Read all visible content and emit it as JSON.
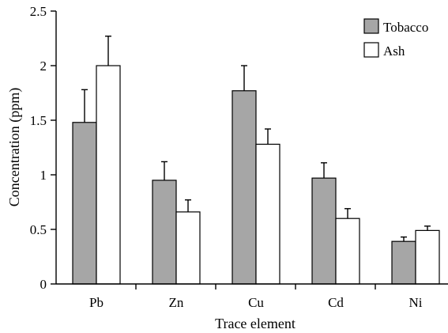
{
  "chart_data": {
    "type": "bar",
    "title": "",
    "xlabel": "Trace element",
    "ylabel": "Concentration (ppm)",
    "ylim": [
      0,
      2.5
    ],
    "yticks": [
      "0",
      "0.5",
      "1",
      "1.5",
      "2",
      "2.5"
    ],
    "categories": [
      "Pb",
      "Zn",
      "Cu",
      "Cd",
      "Ni"
    ],
    "grid": false,
    "legend_position": "top-right",
    "series": [
      {
        "name": "Tobacco",
        "color": "#a6a6a6",
        "values": [
          1.48,
          0.95,
          1.77,
          0.97,
          0.39
        ],
        "errors": [
          0.3,
          0.17,
          0.23,
          0.14,
          0.04
        ]
      },
      {
        "name": "Ash",
        "color": "#ffffff",
        "values": [
          2.0,
          0.66,
          1.28,
          0.6,
          0.49
        ],
        "errors": [
          0.27,
          0.11,
          0.14,
          0.09,
          0.04
        ]
      }
    ]
  }
}
